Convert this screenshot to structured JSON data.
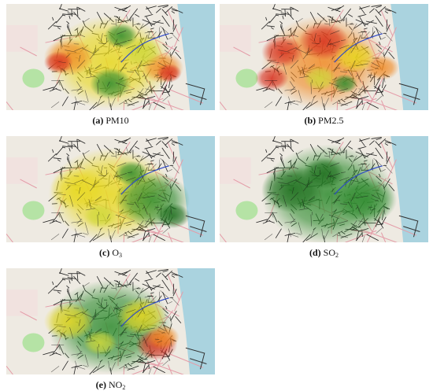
{
  "panels": [
    {
      "label": "(a)",
      "name": "PM10"
    },
    {
      "label": "(b)",
      "name": "PM2.5"
    },
    {
      "label": "(c)",
      "name": "O",
      "sub": "3"
    },
    {
      "label": "(d)",
      "name": "SO",
      "sub": "2"
    },
    {
      "label": "(e)",
      "name": "NO",
      "sub": "2"
    }
  ]
}
